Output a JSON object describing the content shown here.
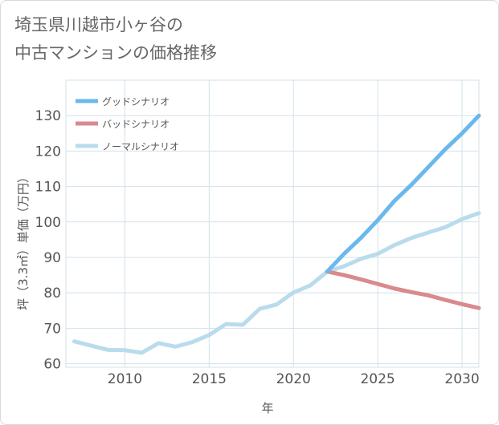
{
  "title_line1": "埼玉県川越市小ヶ谷の",
  "title_line2": "中古マンションの価格推移",
  "chart_data": {
    "type": "line",
    "title": "埼玉県川越市小ヶ谷の中古マンションの価格推移",
    "xlabel": "年",
    "ylabel": "坪（3.3㎡）単価（万円）",
    "xlim": [
      2006.5,
      2031
    ],
    "ylim": [
      59,
      140
    ],
    "xticks": [
      2010,
      2015,
      2020,
      2025,
      2030
    ],
    "yticks": [
      60,
      70,
      80,
      90,
      100,
      110,
      120,
      130
    ],
    "grid": true,
    "legend_position": "top-left",
    "series": [
      {
        "name": "グッドシナリオ",
        "color": "#6bb8ec",
        "x": [
          2022,
          2023,
          2024,
          2025,
          2026,
          2027,
          2028,
          2029,
          2030,
          2031
        ],
        "y": [
          86.0,
          91.0,
          95.5,
          100.5,
          106.0,
          110.5,
          115.5,
          120.5,
          125.0,
          130.0
        ]
      },
      {
        "name": "バッドシナリオ",
        "color": "#d98a8f",
        "x": [
          2022,
          2023,
          2024,
          2025,
          2026,
          2027,
          2028,
          2029,
          2030,
          2031
        ],
        "y": [
          86.0,
          85.0,
          83.8,
          82.5,
          81.2,
          80.2,
          79.3,
          78.0,
          76.8,
          75.7
        ]
      },
      {
        "name": "ノーマルシナリオ",
        "color": "#b9dcec",
        "x": [
          2007,
          2008,
          2009,
          2010,
          2011,
          2012,
          2013,
          2014,
          2015,
          2016,
          2017,
          2018,
          2019,
          2020,
          2021,
          2022,
          2023,
          2024,
          2025,
          2026,
          2027,
          2028,
          2029,
          2030,
          2031
        ],
        "y": [
          66.3,
          65.1,
          63.9,
          63.8,
          63.1,
          65.8,
          64.8,
          66.1,
          68.1,
          71.2,
          71.0,
          75.5,
          76.7,
          80.1,
          82.1,
          86.0,
          87.5,
          89.6,
          91.0,
          93.5,
          95.5,
          97.0,
          98.5,
          100.8,
          102.5
        ]
      }
    ]
  }
}
